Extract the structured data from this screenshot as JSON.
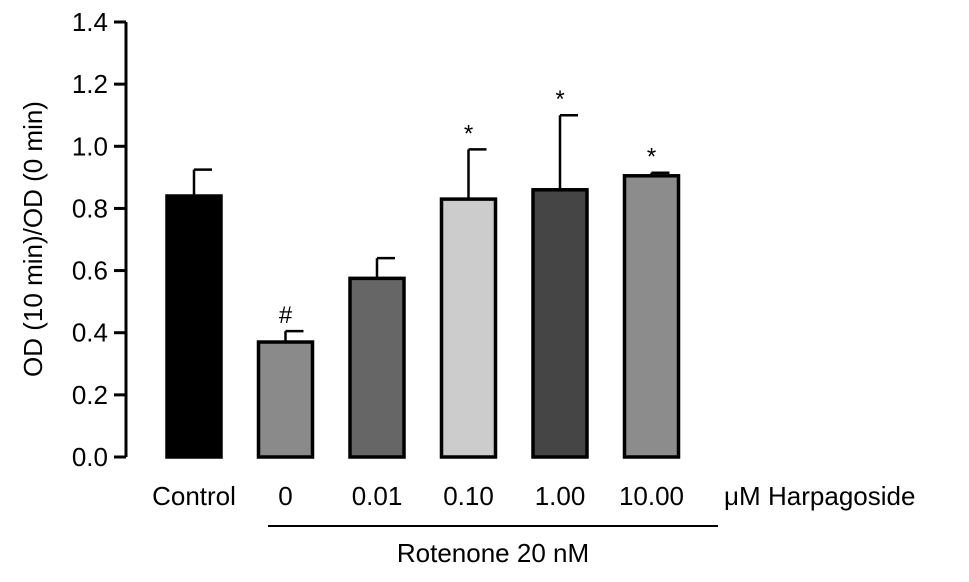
{
  "chart_data": {
    "type": "bar",
    "ylabel": "OD (10 min)/OD (0 min)",
    "ylim": [
      0,
      1.4
    ],
    "yticks": [
      "0.0",
      "0.2",
      "0.4",
      "0.6",
      "0.8",
      "1.0",
      "1.2",
      "1.4"
    ],
    "categories": [
      "Control",
      "0",
      "0.01",
      "0.10",
      "1.00",
      "10.00"
    ],
    "values": [
      0.84,
      0.37,
      0.575,
      0.83,
      0.86,
      0.905
    ],
    "errors": [
      0.085,
      0.035,
      0.065,
      0.16,
      0.24,
      0.01
    ],
    "significance": [
      "",
      "#",
      "",
      "*",
      "*",
      "*"
    ],
    "bar_colors": [
      "#000000",
      "#8a8a8a",
      "#666666",
      "#cccccc",
      "#454545",
      "#8c8c8c"
    ],
    "unit_label": "μM",
    "series_label": "Harpagoside",
    "group_label": "Rotenone 20 nM"
  }
}
